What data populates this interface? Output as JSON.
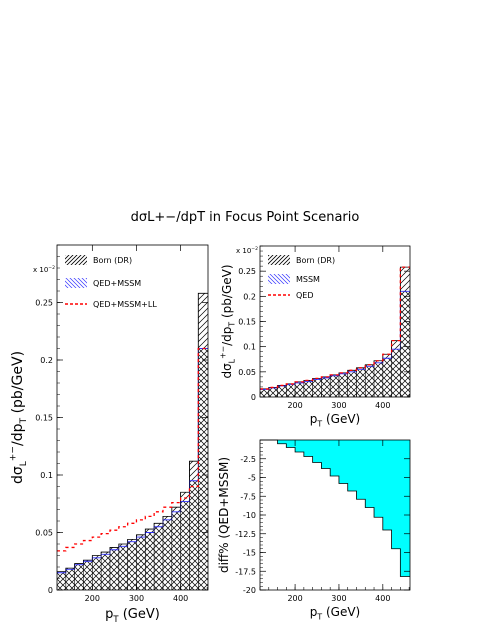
{
  "title": "dσL+−/dpT in Focus Point Scenario",
  "chart_data": [
    {
      "type": "histogram",
      "panel": "left",
      "xlabel": "pT (GeV)",
      "ylabel": "dσL+−/dpT (pb/GeV)",
      "y_multiplier": "x 10−2",
      "xlim": [
        120,
        462
      ],
      "ylim": [
        0,
        0.3
      ],
      "x_ticks": [
        200,
        300,
        400
      ],
      "y_ticks": [
        0,
        0.05,
        0.1,
        0.15,
        0.2,
        0.25
      ],
      "y_tick_labels": [
        "0",
        "0.05",
        "0.1",
        "0.15",
        "0.2",
        "0.25"
      ],
      "bin_edges": [
        120,
        140,
        160,
        180,
        200,
        220,
        240,
        260,
        280,
        300,
        320,
        340,
        360,
        380,
        400,
        420,
        440,
        462
      ],
      "legend_position": "top-left",
      "series": [
        {
          "name": "Born (DR)",
          "style": "hatch-diagonal",
          "values": [
            0.016,
            0.019,
            0.023,
            0.026,
            0.03,
            0.033,
            0.037,
            0.04,
            0.044,
            0.048,
            0.053,
            0.058,
            0.064,
            0.072,
            0.085,
            0.112,
            0.258
          ]
        },
        {
          "name": "QED+MSSM",
          "style": "blue-hatch",
          "values": [
            0.015,
            0.018,
            0.022,
            0.025,
            0.028,
            0.031,
            0.035,
            0.038,
            0.042,
            0.046,
            0.05,
            0.055,
            0.061,
            0.068,
            0.077,
            0.095,
            0.21
          ]
        },
        {
          "name": "QED+MSSM+LL",
          "style": "red-dashed",
          "values": [
            0.034,
            0.037,
            0.04,
            0.043,
            0.046,
            0.049,
            0.052,
            0.055,
            0.058,
            0.061,
            0.064,
            0.068,
            0.072,
            0.076,
            0.08,
            0.09,
            0.21
          ]
        }
      ]
    },
    {
      "type": "histogram",
      "panel": "top-right",
      "xlabel": "pT (GeV)",
      "ylabel": "dσL+−/dpT (pb/GeV)",
      "y_multiplier": "x 10−2",
      "xlim": [
        120,
        462
      ],
      "ylim": [
        0,
        0.3
      ],
      "x_ticks": [
        200,
        300,
        400
      ],
      "y_ticks": [
        0,
        0.05,
        0.1,
        0.15,
        0.2,
        0.25
      ],
      "y_tick_labels": [
        "0",
        "0.05",
        "0.1",
        "0.15",
        "0.2",
        "0.25"
      ],
      "bin_edges": [
        120,
        140,
        160,
        180,
        200,
        220,
        240,
        260,
        280,
        300,
        320,
        340,
        360,
        380,
        400,
        420,
        440,
        462
      ],
      "legend_position": "top-left",
      "series": [
        {
          "name": "Born (DR)",
          "style": "hatch-diagonal",
          "values": [
            0.016,
            0.019,
            0.023,
            0.026,
            0.03,
            0.033,
            0.037,
            0.04,
            0.044,
            0.048,
            0.053,
            0.058,
            0.064,
            0.072,
            0.085,
            0.112,
            0.258
          ]
        },
        {
          "name": "MSSM",
          "style": "blue-hatch",
          "values": [
            0.015,
            0.018,
            0.022,
            0.025,
            0.028,
            0.031,
            0.035,
            0.038,
            0.042,
            0.046,
            0.05,
            0.055,
            0.061,
            0.068,
            0.077,
            0.095,
            0.21
          ]
        },
        {
          "name": "QED",
          "style": "red-dashed",
          "values": [
            0.016,
            0.019,
            0.023,
            0.026,
            0.03,
            0.033,
            0.037,
            0.04,
            0.044,
            0.048,
            0.053,
            0.058,
            0.064,
            0.072,
            0.085,
            0.112,
            0.258
          ]
        }
      ]
    },
    {
      "type": "histogram",
      "panel": "bottom-right",
      "xlabel": "pT (GeV)",
      "ylabel": "diff% (QED+MSSM)",
      "xlim": [
        120,
        462
      ],
      "ylim": [
        -20,
        0
      ],
      "x_ticks": [
        200,
        300,
        400
      ],
      "y_ticks": [
        -2.5,
        -5,
        -7.5,
        -10,
        -12.5,
        -15,
        -17.5,
        -20
      ],
      "y_tick_labels": [
        "-2.5",
        "-5",
        "-7.5",
        "-10",
        "-12.5",
        "-15",
        "-17.5",
        "-20"
      ],
      "bin_edges": [
        120,
        140,
        160,
        180,
        200,
        220,
        240,
        260,
        280,
        300,
        320,
        340,
        360,
        380,
        400,
        420,
        440,
        462
      ],
      "fill_color": "#00ffff",
      "series": [
        {
          "name": "",
          "values": [
            0,
            0,
            -0.5,
            -1.0,
            -1.6,
            -2.2,
            -3.0,
            -3.8,
            -4.8,
            -5.8,
            -6.8,
            -7.9,
            -9.0,
            -10.3,
            -12.0,
            -14.5,
            -18.2
          ]
        }
      ]
    }
  ]
}
